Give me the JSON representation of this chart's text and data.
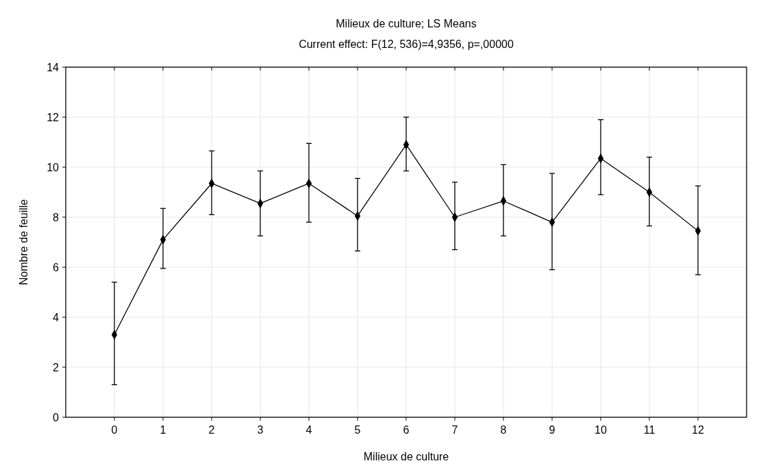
{
  "chart_data": {
    "type": "line",
    "title": "Milieux de culture; LS Means",
    "subtitle": "Current effect: F(12, 536)=4,9356, p=,00000",
    "xlabel": "Milieux de culture",
    "ylabel": "Nombre de feuille",
    "x": [
      0,
      1,
      2,
      3,
      4,
      5,
      6,
      7,
      8,
      9,
      10,
      11,
      12
    ],
    "series": [
      {
        "color": "#000000",
        "values": [
          3.3,
          7.1,
          9.35,
          8.55,
          9.35,
          8.05,
          10.9,
          8.0,
          8.65,
          7.8,
          10.35,
          9.0,
          7.45
        ],
        "errors": [
          [
            1.3,
            5.4
          ],
          [
            5.95,
            8.35
          ],
          [
            8.1,
            10.65
          ],
          [
            7.25,
            9.85
          ],
          [
            7.8,
            10.95
          ],
          [
            6.65,
            9.55
          ],
          [
            9.85,
            12.0
          ],
          [
            6.7,
            9.4
          ],
          [
            7.25,
            10.1
          ],
          [
            5.9,
            9.75
          ],
          [
            8.9,
            11.9
          ],
          [
            7.65,
            10.4
          ],
          [
            5.7,
            9.25
          ]
        ]
      }
    ],
    "xlim": [
      -1,
      13
    ],
    "xticks": [
      0,
      1,
      2,
      3,
      4,
      5,
      6,
      7,
      8,
      9,
      10,
      11,
      12
    ],
    "ylim": [
      0,
      14
    ],
    "yticks": [
      0,
      2,
      4,
      6,
      8,
      10,
      12,
      14
    ],
    "grid": true,
    "marker": "diamond",
    "line_style": "solid"
  }
}
